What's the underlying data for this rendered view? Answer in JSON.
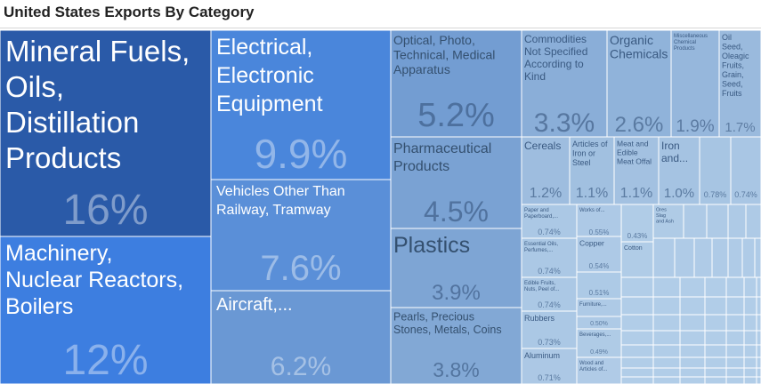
{
  "chart_data": {
    "type": "treemap",
    "title": "United States Exports By Category",
    "items": [
      {
        "label": "Mineral Fuels, Oils, Distillation Products",
        "value": "16%",
        "color": "#2a5aa8"
      },
      {
        "label": "Machinery, Nuclear Reactors, Boilers",
        "value": "12%",
        "color": "#3d7ee0"
      },
      {
        "label": "Electrical, Electronic Equipment",
        "value": "9.9%",
        "color": "#4a86db"
      },
      {
        "label": "Vehicles Other Than Railway, Tramway",
        "value": "7.6%",
        "color": "#5a8fd8"
      },
      {
        "label": "Aircraft,...",
        "value": "6.2%",
        "color": "#6a98d4"
      },
      {
        "label": "Optical, Photo, Technical, Medical Apparatus",
        "value": "5.2%",
        "color": "#739dd2"
      },
      {
        "label": "Pharmaceutical Products",
        "value": "4.5%",
        "color": "#7aa2d3"
      },
      {
        "label": "Plastics",
        "value": "3.9%",
        "color": "#7ea5d4"
      },
      {
        "label": "Pearls, Precious Stones, Metals, Coins",
        "value": "3.8%",
        "color": "#82a8d5"
      },
      {
        "label": "Commodities Not Specified According to Kind",
        "value": "3.3%",
        "color": "#8aaed8"
      },
      {
        "label": "Organic Chemicals",
        "value": "2.6%",
        "color": "#90b3da"
      },
      {
        "label": "Miscellaneous Chemical Products",
        "value": "1.9%",
        "color": "#96b7dc"
      },
      {
        "label": "Oil Seed, Oleagic Fruits, Grain, Seed, Fruits",
        "value": "1.7%",
        "color": "#9abadd"
      },
      {
        "label": "Cereals",
        "value": "1.2%",
        "color": "#9ebddf"
      },
      {
        "label": "Articles of Iron or Steel",
        "value": "1.1%",
        "color": "#a1c0e0"
      },
      {
        "label": "Meat and Edible Meat Offal",
        "value": "1.1%",
        "color": "#a3c1e1"
      },
      {
        "label": "Iron and...",
        "value": "1.0%",
        "color": "#a5c3e2"
      },
      {
        "label": "",
        "value": "0.78%",
        "color": "#a7c5e3"
      },
      {
        "label": "",
        "value": "0.74%",
        "color": "#a9c6e4"
      },
      {
        "label": "Paper and Paperboard,...",
        "value": "0.74%",
        "color": "#abc8e5"
      },
      {
        "label": "Works of...",
        "value": "0.55%",
        "color": "#adc9e6"
      },
      {
        "label": "Ores Slag and Ash",
        "value": "",
        "color": "#afcbe6"
      },
      {
        "label": "",
        "value": "0.43%",
        "color": "#b0cce7"
      },
      {
        "label": "Essential Oils, Perfumes,...",
        "value": "0.74%",
        "color": "#abc8e5"
      },
      {
        "label": "Copper",
        "value": "0.54%",
        "color": "#adc9e6"
      },
      {
        "label": "Cotton",
        "value": "",
        "color": "#b0cce7"
      },
      {
        "label": "Edible Fruits, Nuts, Peel of...",
        "value": "0.74%",
        "color": "#abc8e5"
      },
      {
        "label": "",
        "value": "0.51%",
        "color": "#adcae6"
      },
      {
        "label": "Furniture,...",
        "value": "",
        "color": "#aecae6"
      },
      {
        "label": "Rubbers",
        "value": "0.73%",
        "color": "#abc8e5"
      },
      {
        "label": "",
        "value": "0.50%",
        "color": "#aecae6"
      },
      {
        "label": "Beverages,...",
        "value": "0.49%",
        "color": "#afcbe6"
      },
      {
        "label": "Aluminum",
        "value": "0.71%",
        "color": "#acc8e5"
      },
      {
        "label": "Wood and Articles of...",
        "value": "",
        "color": "#b0cbe7"
      }
    ]
  }
}
